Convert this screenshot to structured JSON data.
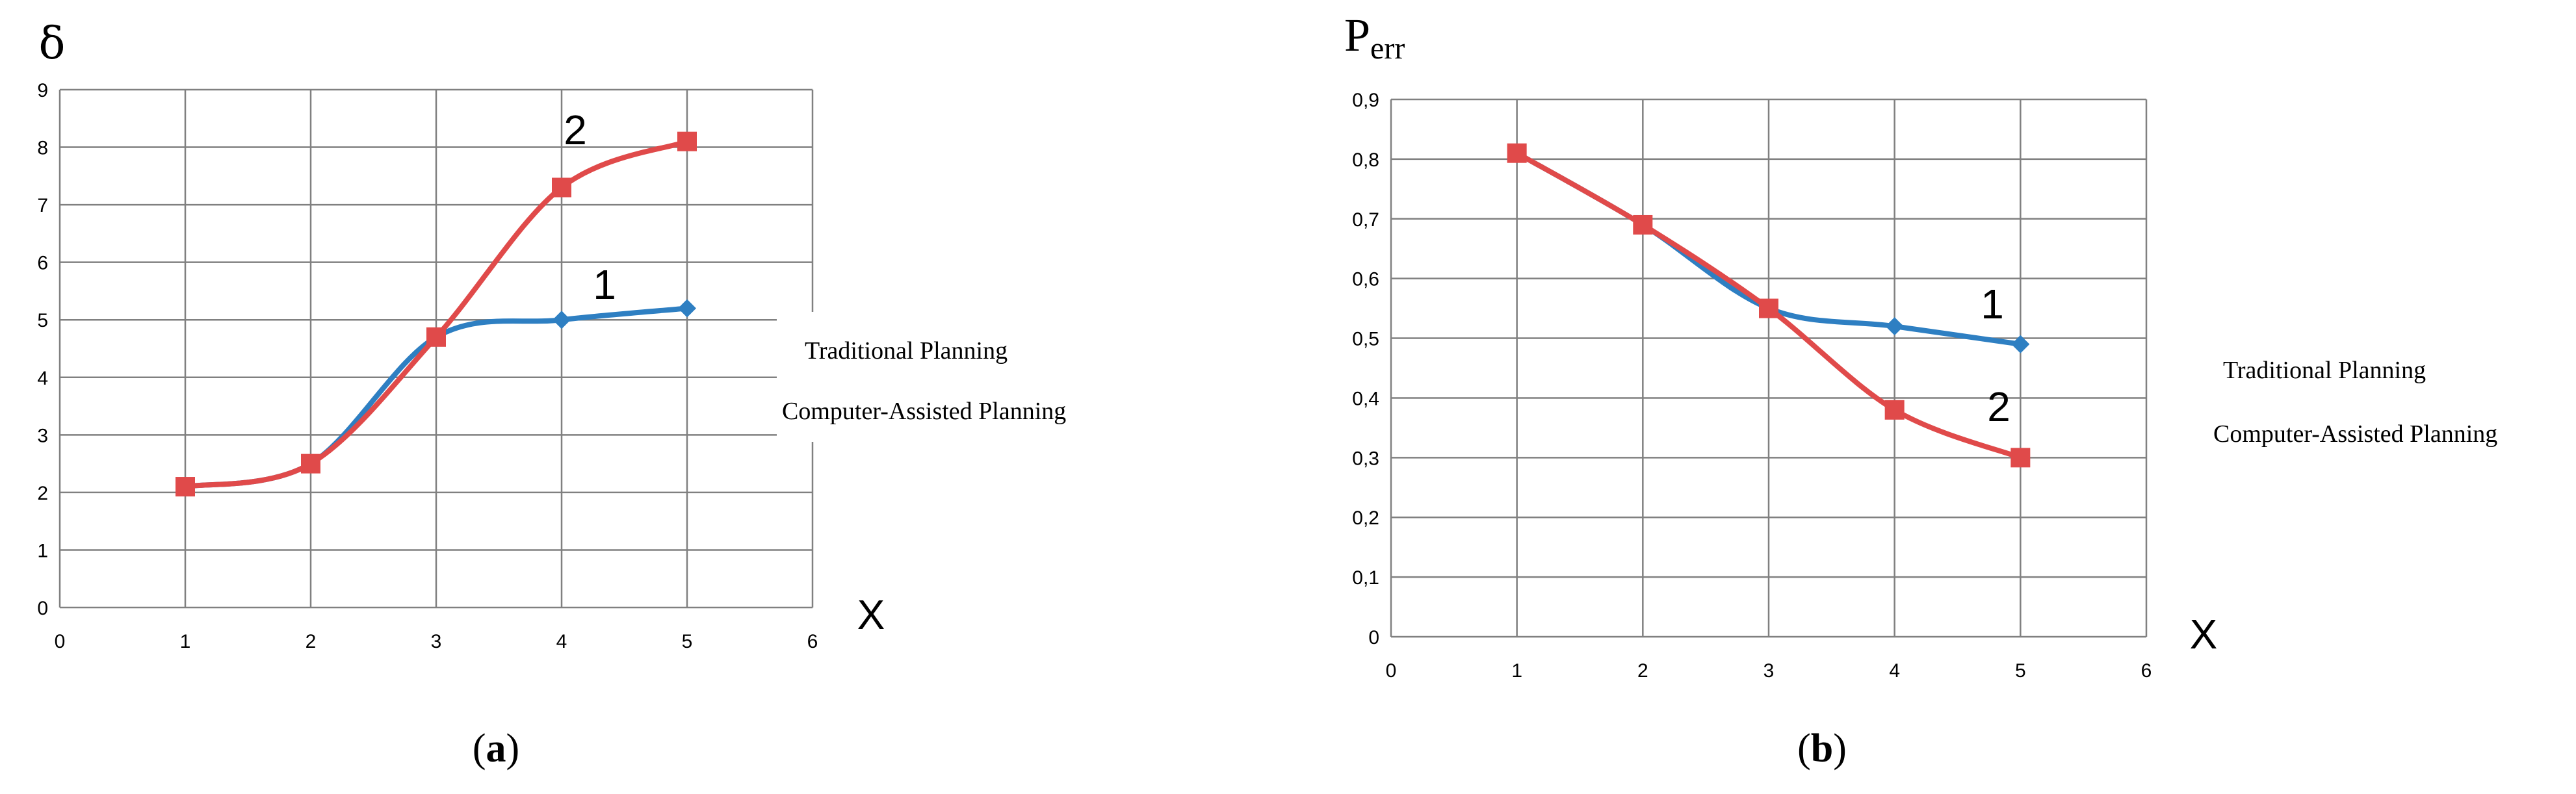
{
  "colors": {
    "series_1": "#2e7fc2",
    "series_2": "#e04a4a",
    "grid": "#808080",
    "text": "#000000"
  },
  "chart_data": [
    {
      "type": "line",
      "panel_label": "a",
      "ylabel": "δ",
      "xlabel": "X",
      "xlim": [
        0,
        6
      ],
      "ylim": [
        0,
        9
      ],
      "xticks": [
        "0",
        "1",
        "2",
        "3",
        "4",
        "5",
        "6"
      ],
      "yticks": [
        "0",
        "1",
        "2",
        "3",
        "4",
        "5",
        "6",
        "7",
        "8",
        "9"
      ],
      "grid": true,
      "legend_placement": "right",
      "series": [
        {
          "name": "Traditional Planning",
          "curve_label": "1",
          "marker": "diamond",
          "x": [
            1,
            2,
            3,
            4,
            5
          ],
          "y": [
            2.1,
            2.5,
            4.7,
            5.0,
            5.2
          ]
        },
        {
          "name": "Computer-Assisted Planning",
          "curve_label": "2",
          "marker": "square",
          "x": [
            1,
            2,
            3,
            4,
            5
          ],
          "y": [
            2.1,
            2.5,
            4.7,
            7.3,
            8.1
          ]
        }
      ]
    },
    {
      "type": "line",
      "panel_label": "b",
      "ylabel": "Perr",
      "ylabel_main": "P",
      "ylabel_sub": "err",
      "xlabel": "X",
      "xlim": [
        0,
        6
      ],
      "ylim": [
        0,
        0.9
      ],
      "xticks": [
        "0",
        "1",
        "2",
        "3",
        "4",
        "5",
        "6"
      ],
      "yticks": [
        "0",
        "0,1",
        "0,2",
        "0,3",
        "0,4",
        "0,5",
        "0,6",
        "0,7",
        "0,8",
        "0,9"
      ],
      "grid": true,
      "legend_placement": "right",
      "series": [
        {
          "name": "Traditional Planning",
          "curve_label": "1",
          "marker": "diamond",
          "x": [
            1,
            2,
            3,
            4,
            5
          ],
          "y": [
            0.81,
            0.69,
            0.55,
            0.52,
            0.49
          ]
        },
        {
          "name": "Computer-Assisted Planning",
          "curve_label": "2",
          "marker": "square",
          "x": [
            1,
            2,
            3,
            4,
            5
          ],
          "y": [
            0.81,
            0.69,
            0.55,
            0.38,
            0.3
          ]
        }
      ]
    }
  ]
}
